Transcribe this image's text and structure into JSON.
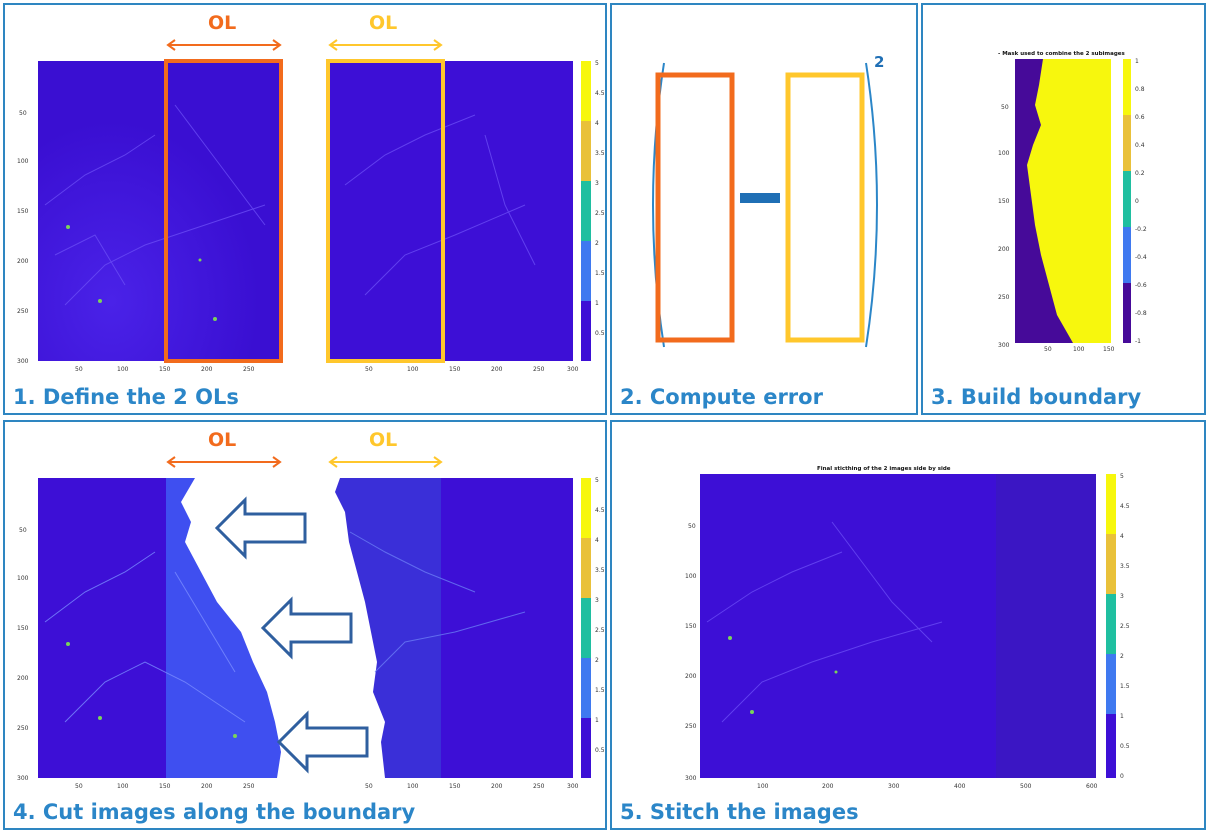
{
  "panels": [
    {
      "id": "p1",
      "caption": "1. Define the 2 OLs"
    },
    {
      "id": "p2",
      "caption": "2. Compute error"
    },
    {
      "id": "p3",
      "caption": "3. Build boundary"
    },
    {
      "id": "p4",
      "caption": "4. Cut images along the boundary"
    },
    {
      "id": "p5",
      "caption": "5. Stitch the images"
    }
  ],
  "overlap_label": "OL",
  "exponent": "2",
  "mask_title": "- Mask used to combine the 2 subimages",
  "stitch_title": "Final sticthing of the 2 images side by side",
  "colors": {
    "orange": "#f26b1d",
    "yellow": "#ffc72c",
    "blue": "#2b86c8",
    "dark_blue": "#1f6fb5",
    "arrow": "#2f5f9f",
    "field": "#3d0fd6",
    "mask_low": "#460a99",
    "mask_high": "#f7f70d"
  },
  "axes": {
    "image_y_ticks": [
      "50",
      "100",
      "150",
      "200",
      "250",
      "300"
    ],
    "image_x_ticks": [
      "50",
      "100",
      "150",
      "200",
      "250",
      "300"
    ],
    "colorbar_ticks": [
      "5",
      "4.5",
      "4",
      "3.5",
      "3",
      "2.5",
      "2",
      "1.5",
      "1",
      "0.5"
    ],
    "mask_y_ticks": [
      "50",
      "100",
      "150",
      "200",
      "250",
      "300"
    ],
    "mask_x_ticks": [
      "50",
      "100",
      "150"
    ],
    "mask_cbar_ticks": [
      "1",
      "0.8",
      "0.6",
      "0.4",
      "0.2",
      "0",
      "-0.2",
      "-0.4",
      "-0.6",
      "-0.8",
      "-1"
    ],
    "stitch_x_ticks": [
      "100",
      "200",
      "300",
      "400",
      "500",
      "600"
    ],
    "stitch_cbar_ticks": [
      "5",
      "4.5",
      "4",
      "3.5",
      "3",
      "2.5",
      "2",
      "1.5",
      "1",
      "0.5",
      "0"
    ]
  }
}
